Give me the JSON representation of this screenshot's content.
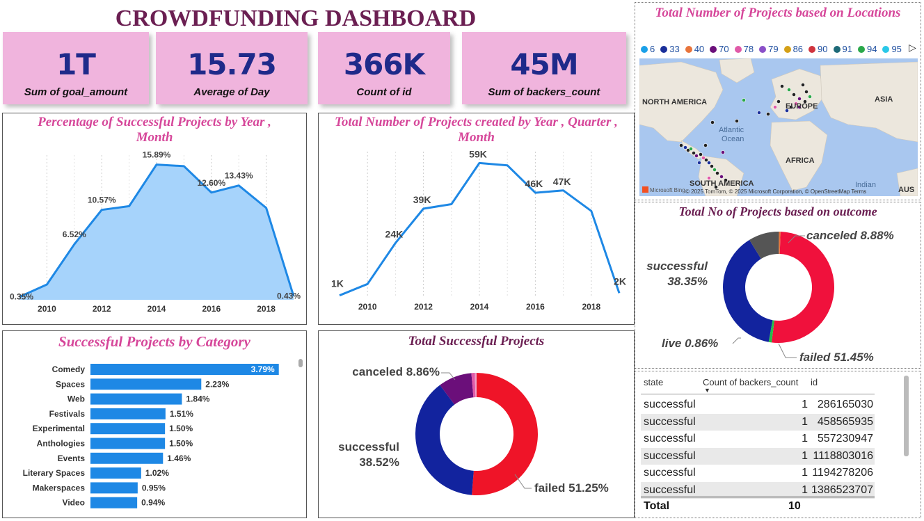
{
  "dashboard_title": "CROWDFUNDING DASHBOARD",
  "kpis": [
    {
      "value": "1T",
      "label": "Sum of goal_amount"
    },
    {
      "value": "15.73",
      "label": "Average of Day"
    },
    {
      "value": "366K",
      "label": "Count of id"
    },
    {
      "value": "45M",
      "label": "Sum of backers_count"
    }
  ],
  "map": {
    "title": "Total Number of Projects based on Locations",
    "legend": [
      {
        "label": "6",
        "color": "#1aa0e8"
      },
      {
        "label": "33",
        "color": "#1a2f9a"
      },
      {
        "label": "40",
        "color": "#e8743b"
      },
      {
        "label": "70",
        "color": "#6b0f7a"
      },
      {
        "label": "78",
        "color": "#e05aa8"
      },
      {
        "label": "79",
        "color": "#8a50c8"
      },
      {
        "label": "86",
        "color": "#d4a017"
      },
      {
        "label": "90",
        "color": "#d0343e"
      },
      {
        "label": "91",
        "color": "#1e6a78"
      },
      {
        "label": "94",
        "color": "#2aa84a"
      },
      {
        "label": "95",
        "color": "#2ac8e8"
      }
    ],
    "labels": {
      "north_america": "NORTH AMERICA",
      "europe": "EUROPE",
      "asia": "ASIA",
      "atlantic": "Atlantic",
      "ocean": "Ocean",
      "africa": "AFRICA",
      "south_america": "SOUTH AMERICA",
      "indian": "Indian",
      "aus": "AUS"
    },
    "attribution": "© 2025 TomTom, © 2025 Microsoft Corporation, © OpenStreetMap  Terms",
    "brand": "Microsoft Bing"
  },
  "chart_data": [
    {
      "type": "area",
      "title": "Percentage of Successful Projects by Year , Month",
      "x": [
        2009,
        2010,
        2011,
        2012,
        2013,
        2014,
        2015,
        2016,
        2017,
        2018,
        2019
      ],
      "values": [
        0.35,
        1.8,
        6.52,
        10.57,
        11.0,
        15.89,
        15.7,
        12.6,
        13.43,
        10.8,
        0.43
      ],
      "data_labels": [
        {
          "i": 0,
          "text": "0.35%"
        },
        {
          "i": 2,
          "text": "6.52%"
        },
        {
          "i": 3,
          "text": "10.57%"
        },
        {
          "i": 5,
          "text": "15.89%"
        },
        {
          "i": 7,
          "text": "12.60%"
        },
        {
          "i": 8,
          "text": "13.43%"
        },
        {
          "i": 10,
          "text": "0.43%"
        }
      ],
      "xticks": [
        "2010",
        "2012",
        "2014",
        "2016",
        "2018"
      ],
      "ylim": [
        0,
        17
      ],
      "color": "#1e88e5",
      "fill": "#a6d3fb"
    },
    {
      "type": "line",
      "title": "Total Number of Projects created by Year , Quarter , Month",
      "x": [
        2009,
        2010,
        2011,
        2012,
        2013,
        2014,
        2015,
        2016,
        2017,
        2018,
        2019
      ],
      "values": [
        1,
        6,
        24,
        39,
        41,
        59,
        58,
        46,
        47,
        38,
        2
      ],
      "data_labels": [
        {
          "i": 0,
          "text": "1K"
        },
        {
          "i": 2,
          "text": "24K"
        },
        {
          "i": 3,
          "text": "39K"
        },
        {
          "i": 5,
          "text": "59K"
        },
        {
          "i": 7,
          "text": "46K"
        },
        {
          "i": 8,
          "text": "47K"
        },
        {
          "i": 10,
          "text": "2K"
        }
      ],
      "xticks": [
        "2010",
        "2012",
        "2014",
        "2016",
        "2018"
      ],
      "ylim": [
        0,
        64
      ],
      "color": "#1e88e5"
    },
    {
      "type": "pie",
      "title": "Total No of Projects based on outcome",
      "slices": [
        {
          "name": "failed",
          "value": 51.45,
          "label": "failed 51.45%",
          "color": "#f0113c"
        },
        {
          "name": "live",
          "value": 0.86,
          "label": "live 0.86%",
          "color": "#22c04a"
        },
        {
          "name": "successful",
          "value": 38.35,
          "label": "successful 38.35%",
          "color": "#12239e"
        },
        {
          "name": "canceled",
          "value": 8.88,
          "label": "canceled 8.88%",
          "color": "#555555"
        },
        {
          "name": "other",
          "value": 0.46,
          "label": "",
          "color": "#e8743b"
        }
      ]
    },
    {
      "type": "bar",
      "title": "Successful Projects by Category",
      "categories": [
        "Comedy",
        "Spaces",
        "Web",
        "Festivals",
        "Experimental",
        "Anthologies",
        "Events",
        "Literary Spaces",
        "Makerspaces",
        "Video"
      ],
      "values": [
        3.79,
        2.23,
        1.84,
        1.51,
        1.5,
        1.5,
        1.46,
        1.02,
        0.95,
        0.94
      ],
      "labels": [
        "3.79%",
        "2.23%",
        "1.84%",
        "1.51%",
        "1.50%",
        "1.50%",
        "1.46%",
        "1.02%",
        "0.95%",
        "0.94%"
      ],
      "xlim": [
        0,
        4.2
      ],
      "color": "#1e88e5"
    },
    {
      "type": "pie",
      "title": "Total Successful Projects",
      "slices": [
        {
          "name": "failed",
          "value": 51.25,
          "label": "failed 51.25%",
          "color": "#ef1428"
        },
        {
          "name": "successful",
          "value": 38.52,
          "label": "successful 38.52%",
          "color": "#12239e"
        },
        {
          "name": "canceled",
          "value": 8.86,
          "label": "canceled 8.86%",
          "color": "#6b0f7a"
        },
        {
          "name": "other1",
          "value": 0.9,
          "label": "",
          "color": "#e05aa8"
        },
        {
          "name": "other2",
          "value": 0.47,
          "label": "",
          "color": "#f0a0c8"
        }
      ]
    }
  ],
  "table": {
    "headers": [
      "state",
      "Count of backers_count",
      "id"
    ],
    "rows": [
      [
        "successful",
        "1",
        "286165030"
      ],
      [
        "successful",
        "1",
        "458565935"
      ],
      [
        "successful",
        "1",
        "557230947"
      ],
      [
        "successful",
        "1",
        "1118803016"
      ],
      [
        "successful",
        "1",
        "1194278206"
      ],
      [
        "successful",
        "1",
        "1386523707"
      ]
    ],
    "total_label": "Total",
    "total_value": "10"
  }
}
